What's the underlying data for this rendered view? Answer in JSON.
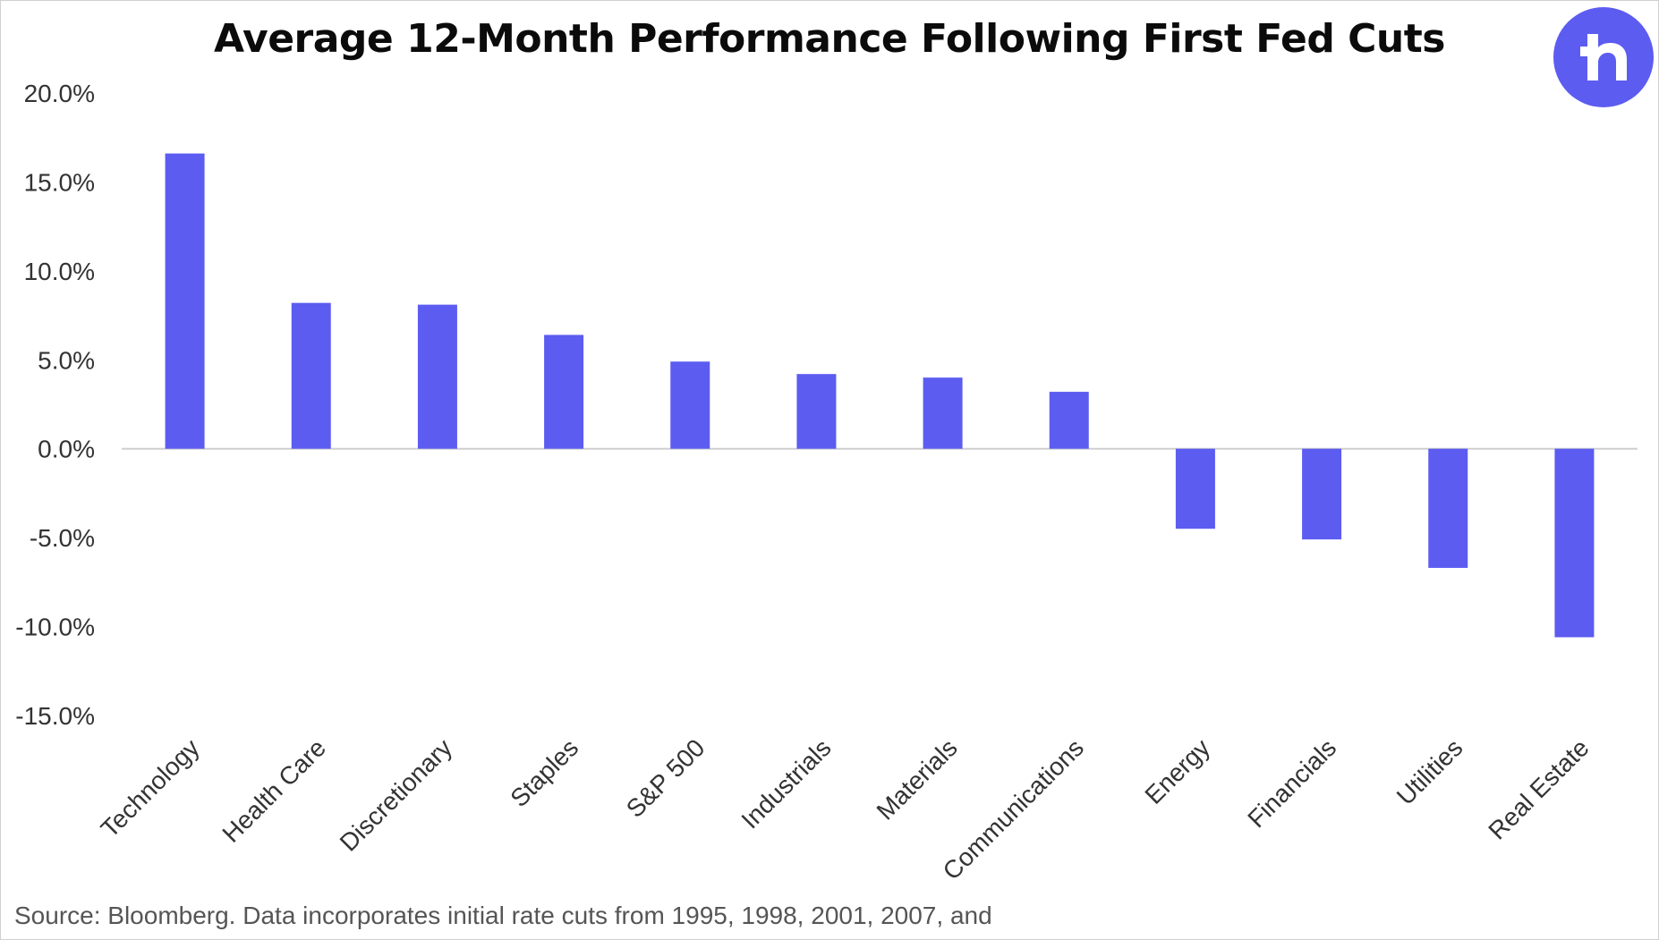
{
  "title": "Average 12-Month Performance Following First Fed Cuts",
  "logo": {
    "icon": "robinhood-h-logo",
    "color": "#5c5cf1"
  },
  "source": "Source: Bloomberg. Data incorporates initial rate cuts from 1995, 1998, 2001, 2007, and",
  "chart_data": {
    "type": "bar",
    "title": "Average 12-Month Performance Following First Fed Cuts",
    "xlabel": "",
    "ylabel": "",
    "ylim": [
      -15,
      20
    ],
    "yticks": [
      20,
      15,
      10,
      5,
      0,
      -5,
      -10,
      -15
    ],
    "ytick_labels": [
      "20.0%",
      "15.0%",
      "10.0%",
      "5.0%",
      "0.0%",
      "-5.0%",
      "-10.0%",
      "-15.0%"
    ],
    "categories": [
      "Technology",
      "Health Care",
      "Discretionary",
      "Staples",
      "S&P 500",
      "Industrials",
      "Materials",
      "Communications",
      "Energy",
      "Financials",
      "Utilities",
      "Real Estate"
    ],
    "values": [
      16.6,
      8.2,
      8.1,
      6.4,
      4.9,
      4.2,
      4.0,
      3.2,
      -4.5,
      -5.1,
      -6.7,
      -10.6
    ],
    "bar_color": "#5c5cf1",
    "grid": false,
    "legend": "none"
  }
}
